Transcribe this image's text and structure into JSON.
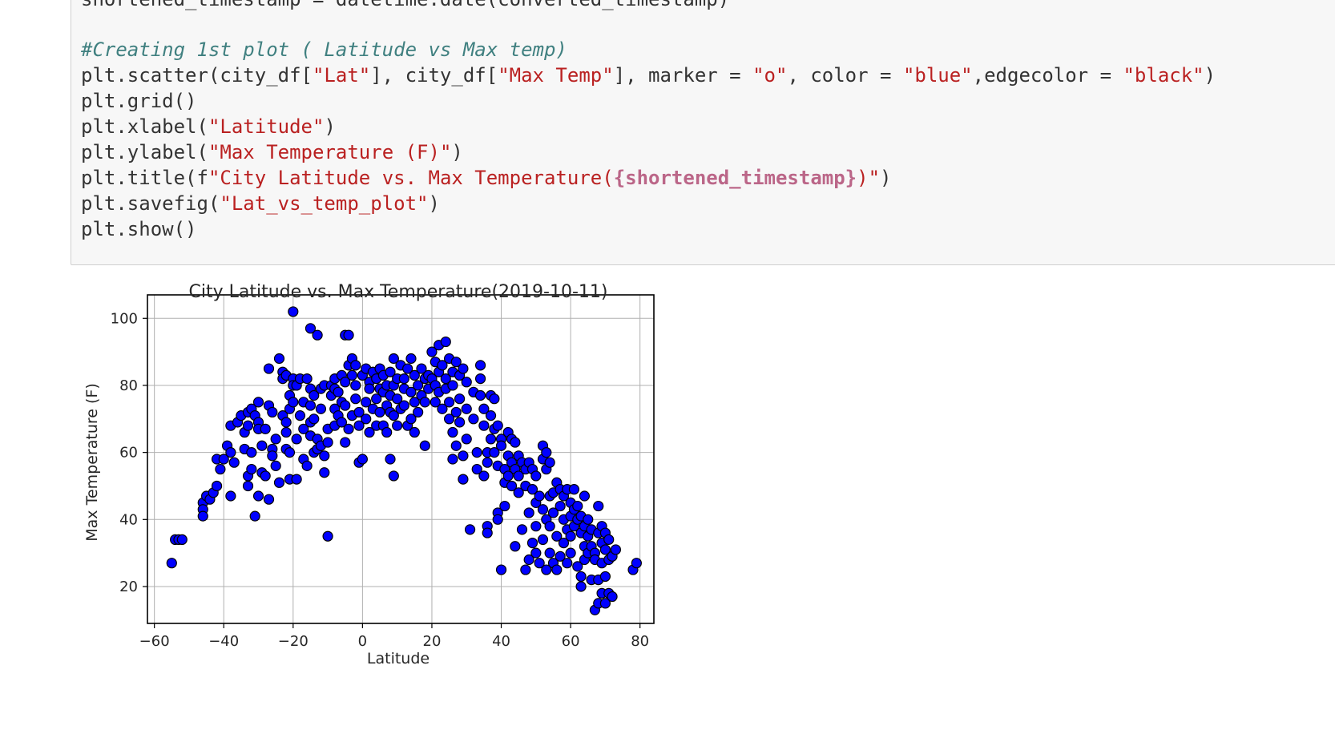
{
  "code": {
    "line0": "shortened_timestamp = datetime.date(converted_timestamp)",
    "comment": "#Creating 1st plot ( Latitude vs Max temp)",
    "scatter": {
      "p1": "plt.scatter(city_df[",
      "s1": "\"Lat\"",
      "p2": "], city_df[",
      "s2": "\"Max Temp\"",
      "p3": "], marker = ",
      "s3": "\"o\"",
      "p4": ", color = ",
      "s4": "\"blue\"",
      "p5": ",edgecolor = ",
      "s5": "\"black\"",
      "p6": ")"
    },
    "grid": "plt.grid()",
    "xlabel": {
      "p1": "plt.xlabel(",
      "s1": "\"Latitude\"",
      "p2": ")"
    },
    "ylabel": {
      "p1": "plt.ylabel(",
      "s1": "\"Max Temperature (F)\"",
      "p2": ")"
    },
    "title": {
      "p1": "plt.title(f",
      "s1": "\"City Latitude vs. Max Temperature(",
      "interp": "{shortened_timestamp}",
      "s2": ")\"",
      "p2": ")"
    },
    "savefig": {
      "p1": "plt.savefig(",
      "s1": "\"Lat_vs_temp_plot\"",
      "p2": ")"
    },
    "show": "plt.show()"
  },
  "chart_data": {
    "type": "scatter",
    "title": "City Latitude vs. Max Temperature(2019-10-11)",
    "xlabel": "Latitude",
    "ylabel": "Max Temperature (F)",
    "xlim": [
      -62,
      84
    ],
    "ylim": [
      9,
      107
    ],
    "xticks": [
      -60,
      -40,
      -20,
      0,
      20,
      40,
      60,
      80
    ],
    "yticks": [
      20,
      40,
      60,
      80,
      100
    ],
    "grid": true,
    "marker_color": "#0000ff",
    "edge_color": "#000000",
    "points": [
      [
        -55,
        27
      ],
      [
        -54,
        34
      ],
      [
        -53,
        34
      ],
      [
        -52,
        34
      ],
      [
        -46,
        45
      ],
      [
        -46,
        43
      ],
      [
        -46,
        41
      ],
      [
        -45,
        47
      ],
      [
        -44,
        46
      ],
      [
        -43,
        48
      ],
      [
        -42,
        50
      ],
      [
        -42,
        58
      ],
      [
        -41,
        55
      ],
      [
        -40,
        58
      ],
      [
        -39,
        62
      ],
      [
        -38,
        47
      ],
      [
        -38,
        60
      ],
      [
        -38,
        68
      ],
      [
        -37,
        57
      ],
      [
        -36,
        69
      ],
      [
        -35,
        71
      ],
      [
        -34,
        66
      ],
      [
        -34,
        61
      ],
      [
        -33,
        72
      ],
      [
        -33,
        68
      ],
      [
        -33,
        53
      ],
      [
        -33,
        50
      ],
      [
        -32,
        60
      ],
      [
        -32,
        55
      ],
      [
        -32,
        73
      ],
      [
        -31,
        71
      ],
      [
        -31,
        41
      ],
      [
        -30,
        75
      ],
      [
        -30,
        69
      ],
      [
        -30,
        67
      ],
      [
        -30,
        47
      ],
      [
        -29,
        54
      ],
      [
        -29,
        62
      ],
      [
        -28,
        53
      ],
      [
        -28,
        67
      ],
      [
        -27,
        85
      ],
      [
        -27,
        74
      ],
      [
        -27,
        46
      ],
      [
        -26,
        72
      ],
      [
        -26,
        61
      ],
      [
        -26,
        59
      ],
      [
        -25,
        56
      ],
      [
        -25,
        64
      ],
      [
        -24,
        88
      ],
      [
        -24,
        51
      ],
      [
        -23,
        84
      ],
      [
        -23,
        71
      ],
      [
        -23,
        82
      ],
      [
        -22,
        83
      ],
      [
        -22,
        69
      ],
      [
        -22,
        66
      ],
      [
        -22,
        61
      ],
      [
        -21,
        52
      ],
      [
        -21,
        77
      ],
      [
        -21,
        73
      ],
      [
        -21,
        60
      ],
      [
        -20,
        102
      ],
      [
        -20,
        82
      ],
      [
        -20,
        80
      ],
      [
        -20,
        75
      ],
      [
        -19,
        52
      ],
      [
        -19,
        64
      ],
      [
        -19,
        80
      ],
      [
        -18,
        82
      ],
      [
        -18,
        71
      ],
      [
        -17,
        75
      ],
      [
        -17,
        67
      ],
      [
        -17,
        58
      ],
      [
        -16,
        82
      ],
      [
        -16,
        56
      ],
      [
        -15,
        79
      ],
      [
        -15,
        74
      ],
      [
        -15,
        97
      ],
      [
        -15,
        69
      ],
      [
        -15,
        65
      ],
      [
        -14,
        77
      ],
      [
        -14,
        70
      ],
      [
        -14,
        60
      ],
      [
        -13,
        61
      ],
      [
        -13,
        95
      ],
      [
        -13,
        64
      ],
      [
        -12,
        73
      ],
      [
        -12,
        79
      ],
      [
        -12,
        62
      ],
      [
        -11,
        80
      ],
      [
        -11,
        54
      ],
      [
        -11,
        59
      ],
      [
        -10,
        35
      ],
      [
        -10,
        63
      ],
      [
        -10,
        67
      ],
      [
        -9,
        77
      ],
      [
        -9,
        80
      ],
      [
        -8,
        73
      ],
      [
        -8,
        68
      ],
      [
        -8,
        79
      ],
      [
        -8,
        82
      ],
      [
        -7,
        78
      ],
      [
        -7,
        71
      ],
      [
        -6,
        75
      ],
      [
        -6,
        83
      ],
      [
        -6,
        69
      ],
      [
        -5,
        95
      ],
      [
        -5,
        74
      ],
      [
        -5,
        63
      ],
      [
        -5,
        81
      ],
      [
        -4,
        95
      ],
      [
        -4,
        86
      ],
      [
        -4,
        67
      ],
      [
        -3,
        88
      ],
      [
        -3,
        71
      ],
      [
        -3,
        83
      ],
      [
        -2,
        86
      ],
      [
        -2,
        80
      ],
      [
        -2,
        76
      ],
      [
        -1,
        57
      ],
      [
        -1,
        72
      ],
      [
        -1,
        68
      ],
      [
        0,
        83
      ],
      [
        0,
        58
      ],
      [
        1,
        85
      ],
      [
        1,
        75
      ],
      [
        1,
        70
      ],
      [
        2,
        81
      ],
      [
        2,
        79
      ],
      [
        2,
        66
      ],
      [
        3,
        84
      ],
      [
        3,
        73
      ],
      [
        4,
        76
      ],
      [
        4,
        68
      ],
      [
        4,
        82
      ],
      [
        5,
        85
      ],
      [
        5,
        72
      ],
      [
        5,
        79
      ],
      [
        6,
        78
      ],
      [
        6,
        68
      ],
      [
        6,
        83
      ],
      [
        7,
        80
      ],
      [
        7,
        74
      ],
      [
        7,
        66
      ],
      [
        8,
        84
      ],
      [
        8,
        72
      ],
      [
        8,
        58
      ],
      [
        8,
        77
      ],
      [
        9,
        88
      ],
      [
        9,
        80
      ],
      [
        9,
        71
      ],
      [
        9,
        53
      ],
      [
        10,
        82
      ],
      [
        10,
        76
      ],
      [
        10,
        68
      ],
      [
        11,
        86
      ],
      [
        11,
        73
      ],
      [
        12,
        79
      ],
      [
        12,
        74
      ],
      [
        12,
        82
      ],
      [
        13,
        85
      ],
      [
        13,
        68
      ],
      [
        14,
        88
      ],
      [
        14,
        78
      ],
      [
        14,
        70
      ],
      [
        15,
        83
      ],
      [
        15,
        75
      ],
      [
        15,
        66
      ],
      [
        16,
        80
      ],
      [
        16,
        72
      ],
      [
        17,
        85
      ],
      [
        17,
        77
      ],
      [
        18,
        82
      ],
      [
        18,
        62
      ],
      [
        18,
        75
      ],
      [
        19,
        83
      ],
      [
        19,
        79
      ],
      [
        20,
        82
      ],
      [
        20,
        90
      ],
      [
        21,
        80
      ],
      [
        21,
        87
      ],
      [
        21,
        75
      ],
      [
        22,
        92
      ],
      [
        22,
        84
      ],
      [
        22,
        78
      ],
      [
        23,
        86
      ],
      [
        23,
        73
      ],
      [
        24,
        93
      ],
      [
        24,
        82
      ],
      [
        24,
        79
      ],
      [
        25,
        88
      ],
      [
        25,
        75
      ],
      [
        25,
        70
      ],
      [
        26,
        84
      ],
      [
        26,
        80
      ],
      [
        26,
        66
      ],
      [
        26,
        58
      ],
      [
        27,
        87
      ],
      [
        27,
        72
      ],
      [
        27,
        62
      ],
      [
        28,
        83
      ],
      [
        28,
        76
      ],
      [
        28,
        69
      ],
      [
        29,
        85
      ],
      [
        29,
        52
      ],
      [
        29,
        59
      ],
      [
        30,
        81
      ],
      [
        30,
        73
      ],
      [
        30,
        64
      ],
      [
        31,
        37
      ],
      [
        32,
        78
      ],
      [
        32,
        70
      ],
      [
        33,
        60
      ],
      [
        33,
        55
      ],
      [
        34,
        86
      ],
      [
        34,
        82
      ],
      [
        34,
        77
      ],
      [
        35,
        73
      ],
      [
        35,
        68
      ],
      [
        35,
        53
      ],
      [
        36,
        60
      ],
      [
        36,
        57
      ],
      [
        36,
        38
      ],
      [
        36,
        36
      ],
      [
        37,
        77
      ],
      [
        37,
        71
      ],
      [
        37,
        64
      ],
      [
        38,
        76
      ],
      [
        38,
        67
      ],
      [
        38,
        60
      ],
      [
        39,
        68
      ],
      [
        39,
        56
      ],
      [
        39,
        42
      ],
      [
        39,
        40
      ],
      [
        40,
        25
      ],
      [
        40,
        64
      ],
      [
        40,
        62
      ],
      [
        41,
        55
      ],
      [
        41,
        51
      ],
      [
        41,
        44
      ],
      [
        42,
        66
      ],
      [
        42,
        59
      ],
      [
        42,
        53
      ],
      [
        43,
        64
      ],
      [
        43,
        57
      ],
      [
        43,
        50
      ],
      [
        44,
        63
      ],
      [
        44,
        55
      ],
      [
        44,
        32
      ],
      [
        45,
        59
      ],
      [
        45,
        53
      ],
      [
        45,
        48
      ],
      [
        46,
        57
      ],
      [
        46,
        37
      ],
      [
        47,
        55
      ],
      [
        47,
        50
      ],
      [
        47,
        25
      ],
      [
        48,
        57
      ],
      [
        48,
        42
      ],
      [
        48,
        28
      ],
      [
        49,
        55
      ],
      [
        49,
        49
      ],
      [
        49,
        33
      ],
      [
        50,
        53
      ],
      [
        50,
        45
      ],
      [
        50,
        38
      ],
      [
        50,
        30
      ],
      [
        51,
        47
      ],
      [
        51,
        27
      ],
      [
        52,
        62
      ],
      [
        52,
        58
      ],
      [
        52,
        43
      ],
      [
        52,
        34
      ],
      [
        53,
        60
      ],
      [
        53,
        55
      ],
      [
        53,
        40
      ],
      [
        53,
        25
      ],
      [
        54,
        57
      ],
      [
        54,
        47
      ],
      [
        54,
        38
      ],
      [
        54,
        30
      ],
      [
        55,
        48
      ],
      [
        55,
        42
      ],
      [
        55,
        27
      ],
      [
        56,
        51
      ],
      [
        56,
        35
      ],
      [
        56,
        25
      ],
      [
        57,
        49
      ],
      [
        57,
        44
      ],
      [
        57,
        29
      ],
      [
        58,
        47
      ],
      [
        58,
        40
      ],
      [
        58,
        33
      ],
      [
        59,
        49
      ],
      [
        59,
        37
      ],
      [
        59,
        27
      ],
      [
        60,
        45
      ],
      [
        60,
        41
      ],
      [
        60,
        35
      ],
      [
        60,
        30
      ],
      [
        61,
        49
      ],
      [
        61,
        43
      ],
      [
        61,
        38
      ],
      [
        62,
        44
      ],
      [
        62,
        40
      ],
      [
        62,
        26
      ],
      [
        63,
        41
      ],
      [
        63,
        36
      ],
      [
        63,
        23
      ],
      [
        63,
        20
      ],
      [
        64,
        47
      ],
      [
        64,
        38
      ],
      [
        64,
        32
      ],
      [
        64,
        28
      ],
      [
        65,
        40
      ],
      [
        65,
        35
      ],
      [
        65,
        30
      ],
      [
        66,
        37
      ],
      [
        66,
        32
      ],
      [
        66,
        22
      ],
      [
        67,
        30
      ],
      [
        67,
        28
      ],
      [
        67,
        13
      ],
      [
        68,
        44
      ],
      [
        68,
        36
      ],
      [
        68,
        22
      ],
      [
        68,
        15
      ],
      [
        69,
        38
      ],
      [
        69,
        33
      ],
      [
        69,
        27
      ],
      [
        69,
        18
      ],
      [
        70,
        36
      ],
      [
        70,
        31
      ],
      [
        70,
        23
      ],
      [
        70,
        15
      ],
      [
        71,
        34
      ],
      [
        71,
        28
      ],
      [
        71,
        18
      ],
      [
        72,
        29
      ],
      [
        72,
        17
      ],
      [
        73,
        31
      ],
      [
        78,
        25
      ],
      [
        79,
        27
      ]
    ]
  }
}
